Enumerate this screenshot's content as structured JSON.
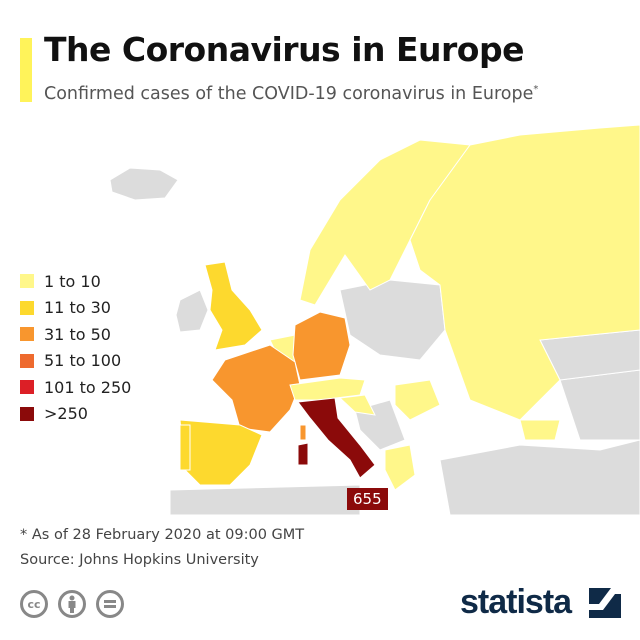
{
  "header": {
    "title": "The Coronavirus in Europe",
    "subtitle": "Confirmed cases of the COVID-19 coronavirus in Europe",
    "subtitle_marker": "*",
    "accent_color": "#fff35a"
  },
  "legend": {
    "items": [
      {
        "label": "1 to 10",
        "color": "#fff78a"
      },
      {
        "label": "11 to 30",
        "color": "#fdd92e"
      },
      {
        "label": "31 to 50",
        "color": "#f8962e"
      },
      {
        "label": "51 to 100",
        "color": "#ee6a2e"
      },
      {
        "label": "101 to 250",
        "color": "#dc1f26"
      },
      {
        "label": ">250",
        "color": "#8b0a0a"
      }
    ]
  },
  "map": {
    "no_data_color": "#dcdcdc",
    "callout": {
      "country": "Italy",
      "value": "655"
    }
  },
  "footer": {
    "note": "* As of 28 February 2020 at 09:00 GMT",
    "source": "Source: Johns Hopkins University",
    "license_icons": [
      "cc-icon",
      "attribution-icon",
      "no-derivatives-icon"
    ],
    "cc_text": "cc",
    "brand": "statista"
  }
}
